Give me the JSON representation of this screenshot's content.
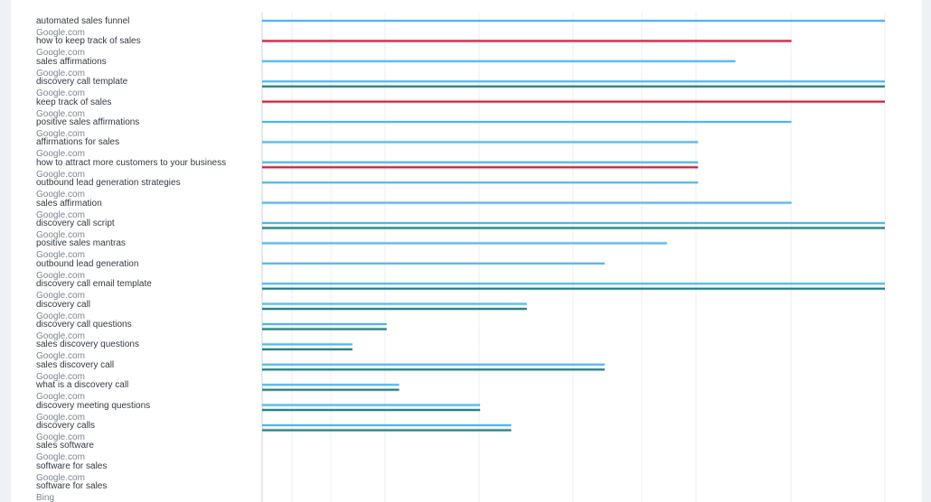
{
  "chart_data": {
    "type": "bar",
    "orientation": "horizontal",
    "grid": true,
    "series_colors": {
      "a": "#52b6e8",
      "b": "#1f7a82",
      "c": "#c8203a"
    },
    "rows": [
      {
        "keyword": "automated sales funnel",
        "engine": "Google.com",
        "bars": [
          {
            "s": "a",
            "v": 100
          }
        ]
      },
      {
        "keyword": "how to keep track of sales",
        "engine": "Google.com",
        "bars": [
          {
            "s": "c",
            "v": 85
          }
        ]
      },
      {
        "keyword": "sales affirmations",
        "engine": "Google.com",
        "bars": [
          {
            "s": "a",
            "v": 76
          }
        ]
      },
      {
        "keyword": "discovery call template",
        "engine": "Google.com",
        "bars": [
          {
            "s": "a",
            "v": 100
          },
          {
            "s": "b",
            "v": 100
          }
        ]
      },
      {
        "keyword": "keep track of sales",
        "engine": "Google.com",
        "bars": [
          {
            "s": "c",
            "v": 100
          }
        ]
      },
      {
        "keyword": "positive sales affirmations",
        "engine": "Google.com",
        "bars": [
          {
            "s": "a",
            "v": 85
          }
        ]
      },
      {
        "keyword": "affirmations for sales",
        "engine": "Google.com",
        "bars": [
          {
            "s": "a",
            "v": 70
          }
        ]
      },
      {
        "keyword": "how to attract more customers to your business",
        "engine": "Google.com",
        "bars": [
          {
            "s": "a",
            "v": 70
          },
          {
            "s": "c",
            "v": 70
          }
        ]
      },
      {
        "keyword": "outbound lead generation strategies",
        "engine": "Google.com",
        "bars": [
          {
            "s": "a",
            "v": 70
          }
        ]
      },
      {
        "keyword": "sales affirmation",
        "engine": "Google.com",
        "bars": [
          {
            "s": "a",
            "v": 85
          }
        ]
      },
      {
        "keyword": "discovery call script",
        "engine": "Google.com",
        "bars": [
          {
            "s": "a",
            "v": 100
          },
          {
            "s": "b",
            "v": 100
          }
        ]
      },
      {
        "keyword": "positive sales mantras",
        "engine": "Google.com",
        "bars": [
          {
            "s": "a",
            "v": 65
          }
        ]
      },
      {
        "keyword": "outbound lead generation",
        "engine": "Google.com",
        "bars": [
          {
            "s": "a",
            "v": 55
          }
        ]
      },
      {
        "keyword": "discovery call email template",
        "engine": "Google.com",
        "bars": [
          {
            "s": "a",
            "v": 100
          },
          {
            "s": "b",
            "v": 100
          }
        ]
      },
      {
        "keyword": "discovery call",
        "engine": "Google.com",
        "bars": [
          {
            "s": "a",
            "v": 42.5
          },
          {
            "s": "b",
            "v": 42.5
          }
        ]
      },
      {
        "keyword": "discovery call questions",
        "engine": "Google.com",
        "bars": [
          {
            "s": "a",
            "v": 20
          },
          {
            "s": "b",
            "v": 20
          }
        ]
      },
      {
        "keyword": "sales discovery questions",
        "engine": "Google.com",
        "bars": [
          {
            "s": "a",
            "v": 14.5
          },
          {
            "s": "b",
            "v": 14.5
          }
        ]
      },
      {
        "keyword": "sales discovery call",
        "engine": "Google.com",
        "bars": [
          {
            "s": "a",
            "v": 55
          },
          {
            "s": "b",
            "v": 55
          }
        ]
      },
      {
        "keyword": "what is a discovery call",
        "engine": "Google.com",
        "bars": [
          {
            "s": "a",
            "v": 22
          },
          {
            "s": "b",
            "v": 22
          }
        ]
      },
      {
        "keyword": "discovery meeting questions",
        "engine": "Google.com",
        "bars": [
          {
            "s": "a",
            "v": 35
          },
          {
            "s": "b",
            "v": 35
          }
        ]
      },
      {
        "keyword": "discovery calls",
        "engine": "Google.com",
        "bars": [
          {
            "s": "a",
            "v": 40
          },
          {
            "s": "b",
            "v": 40
          }
        ]
      },
      {
        "keyword": "sales software",
        "engine": "Google.com",
        "bars": []
      },
      {
        "keyword": "software for sales",
        "engine": "Google.com",
        "bars": []
      },
      {
        "keyword": "software for sales",
        "engine": "Bing",
        "bars": []
      }
    ]
  }
}
